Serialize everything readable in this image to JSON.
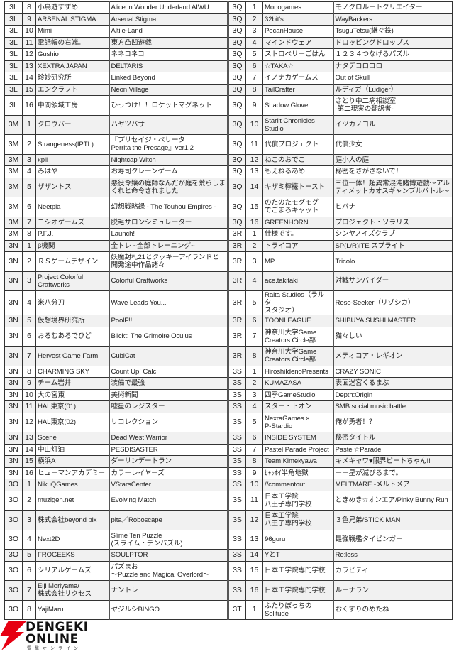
{
  "columns": [
    "block",
    "number",
    "circle",
    "title",
    "block",
    "number",
    "circle",
    "title"
  ],
  "rows": [
    [
      "3L",
      "8",
      "小鳥遊すずめ",
      "Alice in Wonder Underland AIWU",
      "3Q",
      "1",
      "Monogames",
      "モノクロルートクリエイター"
    ],
    [
      "3L",
      "9",
      "ARSENAL STIGMA",
      "Arsenal Stigma",
      "3Q",
      "2",
      "32bit's",
      "WayBackers"
    ],
    [
      "3L",
      "10",
      "Mimi",
      "Altile-Land",
      "3Q",
      "3",
      "PecanHouse",
      "TsuguTetsu(継ぐ鉄)"
    ],
    [
      "3L",
      "11",
      "電話帳の右端。",
      "東方凸凹遊戯",
      "3Q",
      "4",
      "マインドウェア",
      "ドロッピングドロップス"
    ],
    [
      "3L",
      "12",
      "Gushio",
      "ネネコネコ",
      "3Q",
      "5",
      "ストロベリーごはん",
      "１２３４つなげるパズル"
    ],
    [
      "3L",
      "13",
      "XEXTRA JAPAN",
      "DELTARIS",
      "3Q",
      "6",
      "☆TAKA☆",
      "ナタデコロコロ"
    ],
    [
      "3L",
      "14",
      "珍妙研究所",
      "Linked Beyond",
      "3Q",
      "7",
      "イノナカゲームス",
      "Out of Skull"
    ],
    [
      "3L",
      "15",
      "エンクラフト",
      "Neon Village",
      "3Q",
      "8",
      "TailCrafter",
      "ルディガ（Ludiger）"
    ],
    [
      "3L",
      "16",
      "中間領域工房",
      "ひっつけ！！ロケットマグネット",
      "3Q",
      "9",
      "Shadow Glove",
      "さとり中二病相談室\n-第二現実の翻訳者-"
    ],
    [
      "3M",
      "1",
      "クロウバー",
      "ハヤツバサ",
      "3Q",
      "10",
      "Starlit Chronicles\nStudio",
      "イツカノヨル"
    ],
    [
      "3M",
      "2",
      "Strangeness(IPTL)",
      "『プリセイジ・ペリータ\nPerrita the Presage』ver1.2",
      "3Q",
      "11",
      "代償プロジェクト",
      "代償少女"
    ],
    [
      "3M",
      "3",
      "xpii",
      "Nightcap Witch",
      "3Q",
      "12",
      "ねこのおでこ",
      "庭小人の庭"
    ],
    [
      "3M",
      "4",
      "みはや",
      "お寿司クレーンゲーム",
      "3Q",
      "13",
      "もえねるあめ",
      "秘密をさがさないで！"
    ],
    [
      "3M",
      "5",
      "ザザントス",
      "悪役令嬢の庭師なんだが庭を荒らしま\nくれと命令されました",
      "3Q",
      "14",
      "キザミ檸檬トースト",
      "三位一体！超異常混沌賭博遊戯～アル\nティメットカオスギャンブルバトル～"
    ],
    [
      "3M",
      "6",
      "Neetpia",
      "幻想戦略録 - The Touhou Empires -",
      "3Q",
      "15",
      "のたのたモグモグ\nでごまろキャット",
      "ヒバナ"
    ],
    [
      "3M",
      "7",
      "ヨシオゲームズ",
      "脱毛サロンシミュレーター",
      "3Q",
      "16",
      "GREENHORN",
      "プロジェクト・ソラリス"
    ],
    [
      "3M",
      "8",
      "P.F.J.",
      "Launch!",
      "3R",
      "1",
      "仕様です。",
      "シンヤノイズクラブ"
    ],
    [
      "3N",
      "1",
      "β機関",
      "全トレ ~全部トレーニング~",
      "3R",
      "2",
      "トライコア",
      "SP(L/R)ITE スプライト"
    ],
    [
      "3N",
      "2",
      "ＲＳゲームデザイン",
      "妖魔封札21とクッキーアイランドと\n開発途中作品諸々",
      "3R",
      "3",
      "MP",
      "Tricolo"
    ],
    [
      "3N",
      "3",
      "Project Colorful\nCraftworks",
      "Colorful Craftworks",
      "3R",
      "4",
      "ace.takitaki",
      "対戦サンバイダー"
    ],
    [
      "3N",
      "4",
      "米八分刀",
      "Wave Leads You...",
      "3R",
      "5",
      "Ralta Studios（ラルタ\nスタジオ）",
      "Reso-Seeker（リゾシカ）"
    ],
    [
      "3N",
      "5",
      "仮想境界研究所",
      "PoolF!!",
      "3R",
      "6",
      "TOONLEAGUE",
      "SHIBUYA SUSHI MASTER"
    ],
    [
      "3N",
      "6",
      "おるむあるでひど",
      "Blickt: The Grimoire Oculus",
      "3R",
      "7",
      "神奈川大学Game\nCreators Circle部",
      "猫々しい"
    ],
    [
      "3N",
      "7",
      "Hervest Game Farm",
      "CubiCat",
      "3R",
      "8",
      "神奈川大学Game\nCreators Circle部",
      "メテオコア・レギオン"
    ],
    [
      "3N",
      "8",
      "CHARMING SKY",
      "Count Up! Calc",
      "3S",
      "1",
      "HiroshiIdenoPresents",
      "CRAZY SONIC"
    ],
    [
      "3N",
      "9",
      "チーム岩井",
      "装備で最強",
      "3S",
      "2",
      "KUMAZASA",
      "表面迷宮くるまぷ"
    ],
    [
      "3N",
      "10",
      "大の宮東",
      "美術新聞",
      "3S",
      "3",
      "四季GameStudio",
      "Depth:Origin"
    ],
    [
      "3N",
      "11",
      "HAL東京(01)",
      "嘘星のレジスター",
      "3S",
      "4",
      "スター・トオン",
      "SMB social music battle"
    ],
    [
      "3N",
      "12",
      "HAL東京(02)",
      "リコレクション",
      "3S",
      "5",
      "NexraGames ×\nP-Stardio",
      "俺が勇者！？"
    ],
    [
      "3N",
      "13",
      "Scene",
      "Dead West Warrior",
      "3S",
      "6",
      "INSIDE SYSTEM",
      "秘密タイトル"
    ],
    [
      "3N",
      "14",
      "中山灯油",
      "PESDISASTER",
      "3S",
      "7",
      "Pastel Parade Project",
      "Pastel☆Parade"
    ],
    [
      "3N",
      "15",
      "横浜A",
      "ダーリンデートラン",
      "3S",
      "8",
      "Team Kimekyawa",
      "キメキャワ♥限界ビートちゃん!!"
    ],
    [
      "3N",
      "16",
      "ヒューマンアカデミー",
      "カラーレイヤーズ",
      "3S",
      "9",
      "ﾋｬｯﾎｲ半角地獄",
      "ーー星が滅びるまで。"
    ],
    [
      "3O",
      "1",
      "NikuQGames",
      "VStarsCenter",
      "3S",
      "10",
      "//commentout",
      "MELTMARE -メルトメア"
    ],
    [
      "3O",
      "2",
      "muzigen.net",
      "Evolving Match",
      "3S",
      "11",
      "日本工学院\n八王子専門学校",
      "ときめき☆オンエア/Pinky Bunny Run"
    ],
    [
      "3O",
      "3",
      "株式会社beyond pix",
      "pita／Roboscape",
      "3S",
      "12",
      "日本工学院\n八王子専門学校",
      "３色兄弟/STICK MAN"
    ],
    [
      "3O",
      "4",
      "Next2D",
      "Slime Ten Puzzle\n(スライム・テンパズル)",
      "3S",
      "13",
      "96guru",
      "最強戦艦タイピンガー"
    ],
    [
      "3O",
      "5",
      "FROGEEKS",
      "SOULPTOR",
      "3S",
      "14",
      "YとT",
      "Re:less"
    ],
    [
      "3O",
      "6",
      "シリアルゲームズ",
      "パズまお\n～Puzzle and Magical Overlord～",
      "3S",
      "15",
      "日本工学院専門学校",
      "カラビティ"
    ],
    [
      "3O",
      "7",
      "Eiji Moriyama/\n株式会社サクセス",
      "ナントレ",
      "3S",
      "16",
      "日本工学院専門学校",
      "ルーナラン"
    ],
    [
      "3O",
      "8",
      "YajiMaru",
      "ヤジルシBINGO",
      "3T",
      "1",
      "ふたりぼっちの\nSolitude",
      "おくすりのめたね"
    ]
  ],
  "tall_rows": [
    8,
    9,
    10,
    13,
    14,
    18,
    19,
    20,
    22,
    23,
    28,
    34,
    35,
    36,
    38,
    39,
    40
  ],
  "logo": {
    "line1": "DENGEKI",
    "line2": "ONLINE",
    "line3": "電撃オンライン",
    "accent": "#e60012"
  },
  "colors": {
    "stripe": "#f1f1f1",
    "border": "#333333"
  }
}
